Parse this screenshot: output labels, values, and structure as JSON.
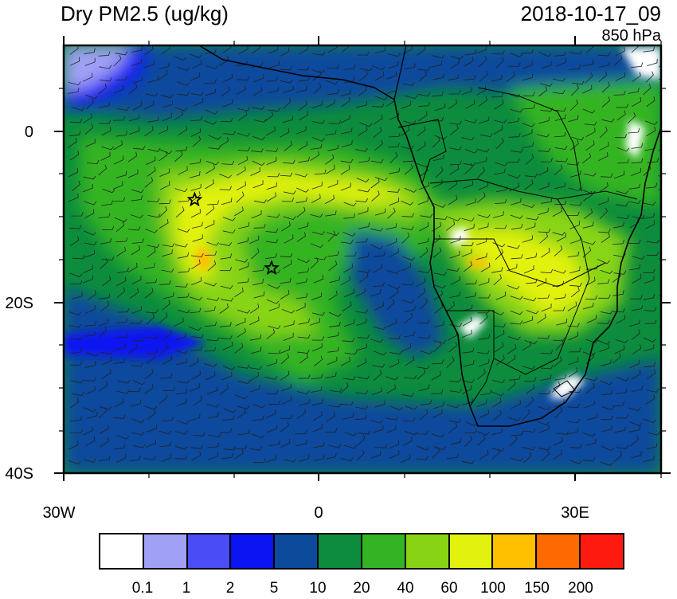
{
  "title": "Dry PM2.5 (ug/kg)",
  "timestamp": "2018-10-17_09",
  "level": "850 hPa",
  "axes": {
    "x_ticks": [
      "30W",
      "0",
      "30E"
    ],
    "y_ticks": [
      "0",
      "20S",
      "40S"
    ]
  },
  "colorbar": {
    "colors": [
      "#ffffff",
      "#a0a0f5",
      "#4a4cf5",
      "#0a14f0",
      "#0c4a9c",
      "#0c8c3c",
      "#34b424",
      "#88d414",
      "#e2f20e",
      "#ffc000",
      "#ff6a00",
      "#ff1a10"
    ],
    "labels": [
      "0.1",
      "1",
      "2",
      "5",
      "10",
      "20",
      "40",
      "60",
      "100",
      "150",
      "200"
    ]
  },
  "markers": [
    {
      "name": "star-marker-1",
      "lon": -14.5,
      "lat": -8
    },
    {
      "name": "star-marker-2",
      "lon": -5.5,
      "lat": -16
    }
  ]
}
